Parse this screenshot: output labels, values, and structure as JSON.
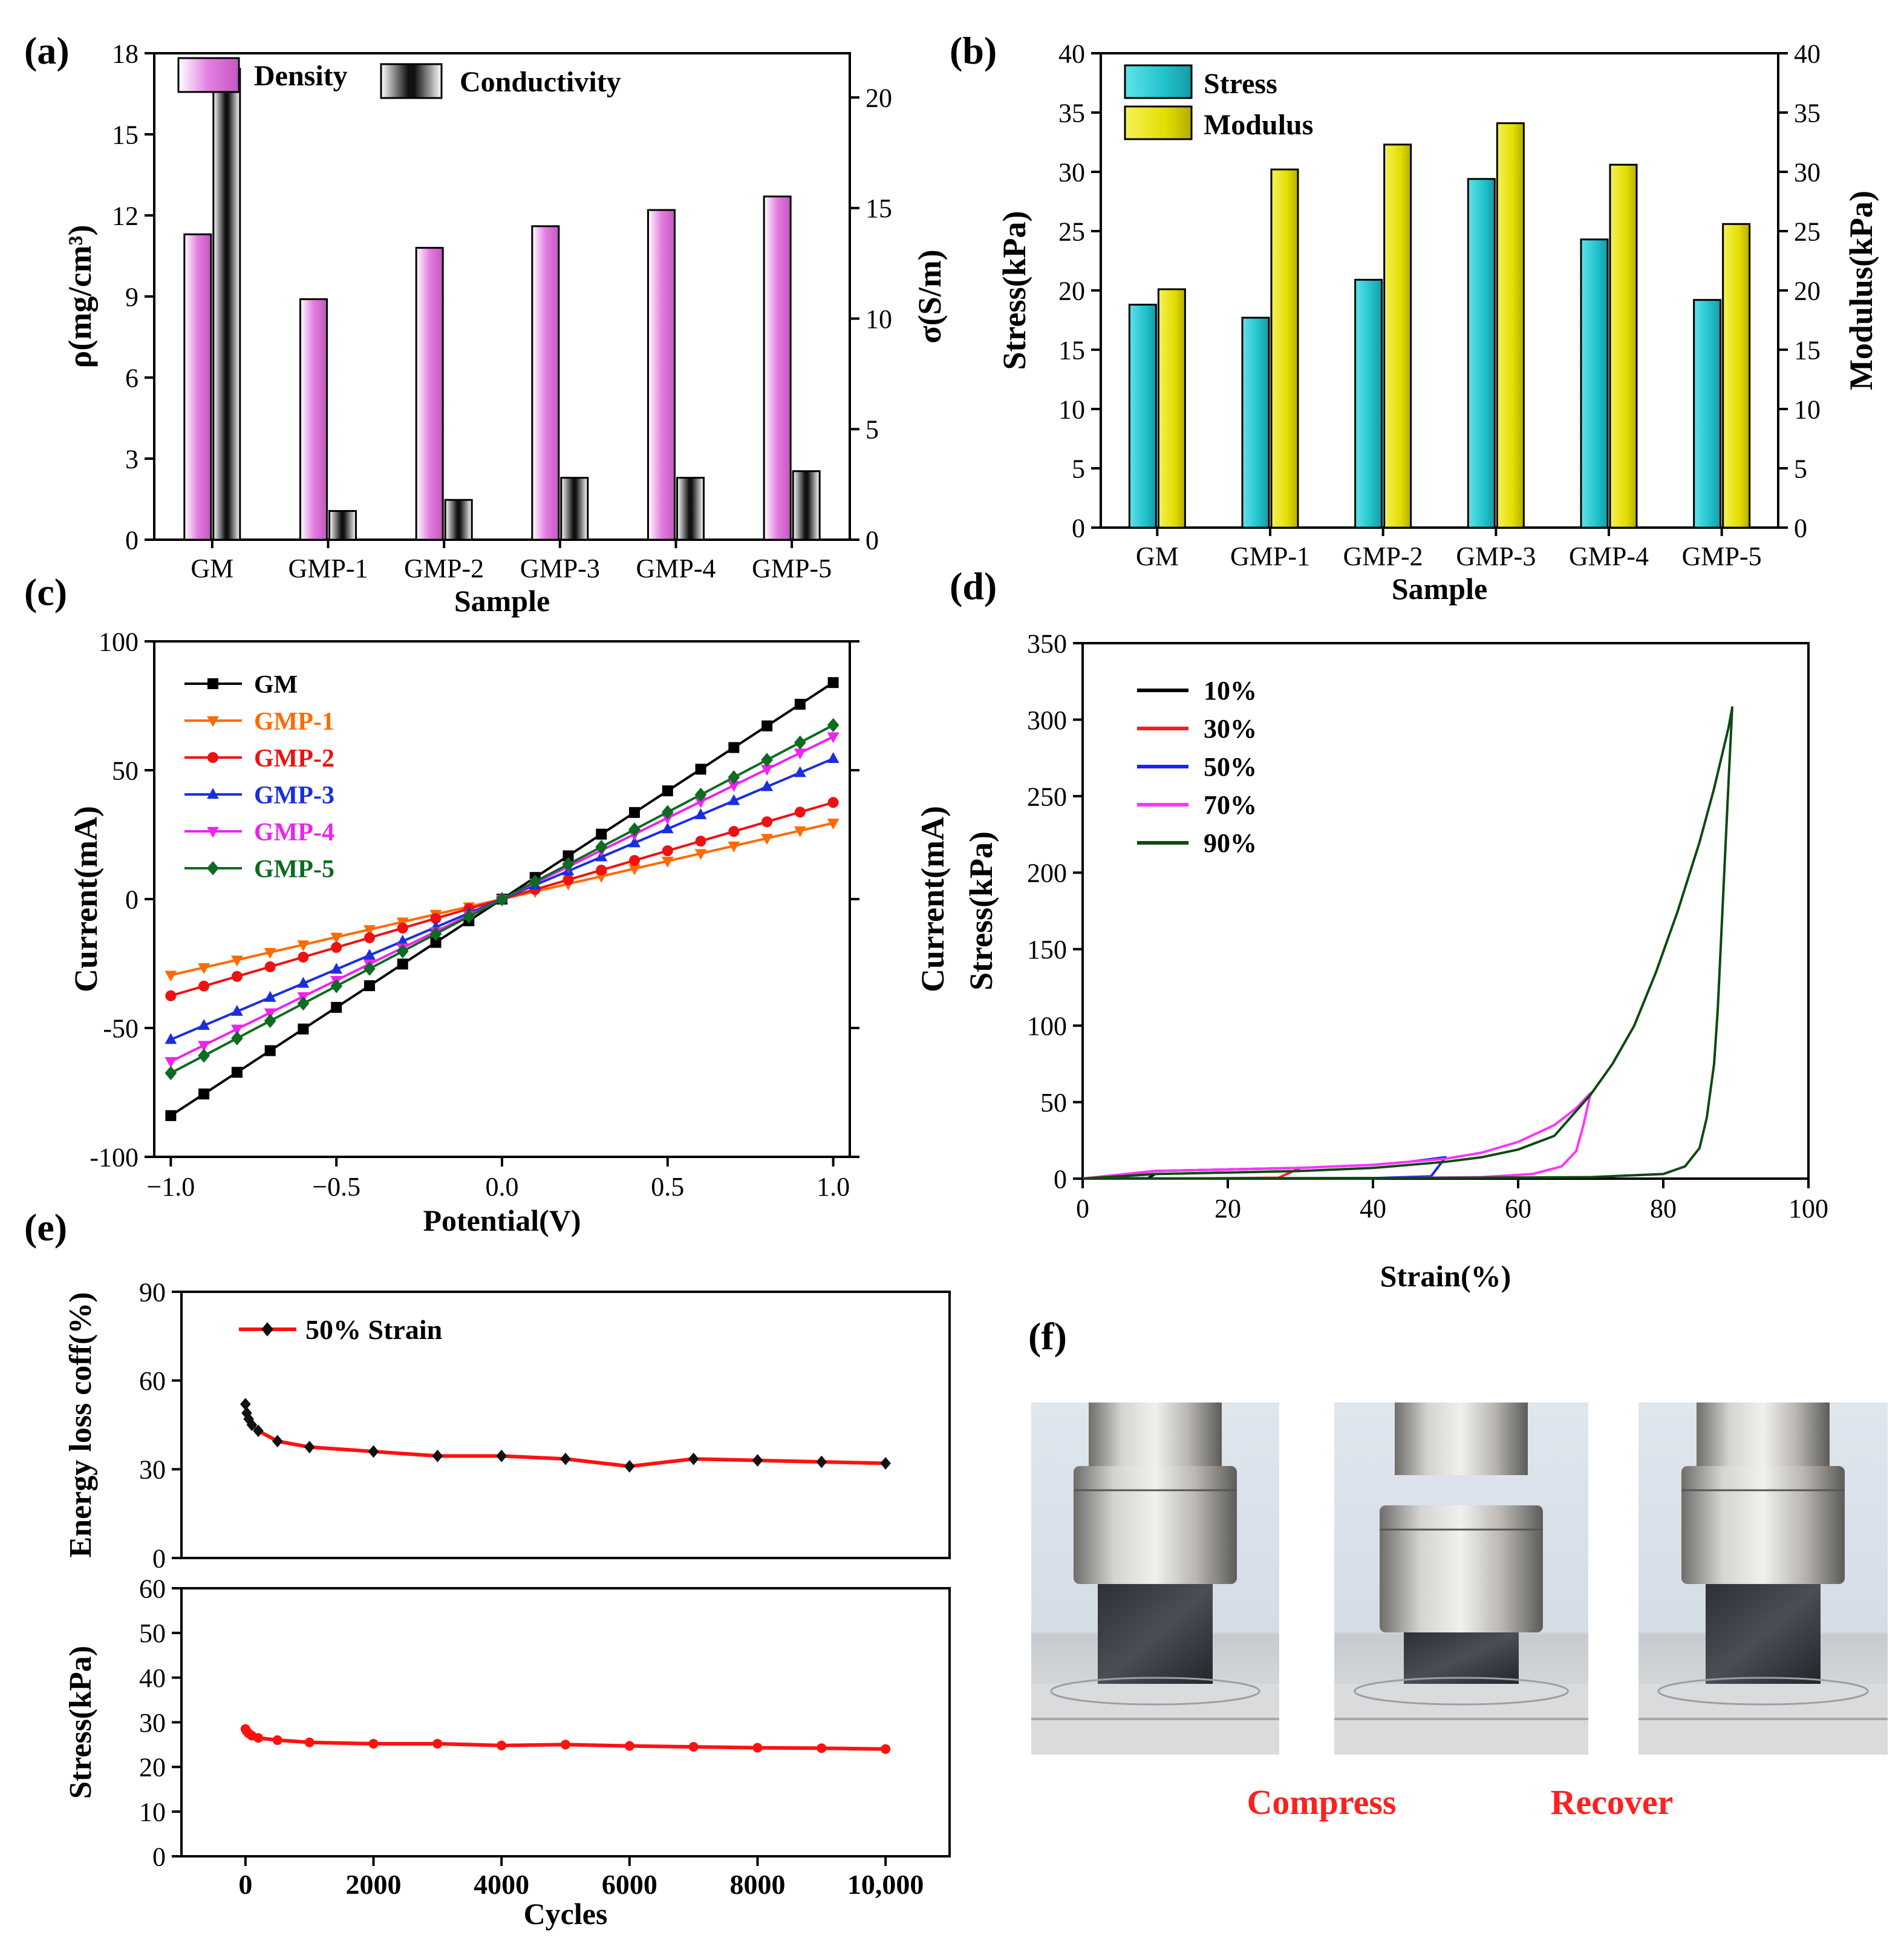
{
  "panel_labels": [
    "(a)",
    "(b)",
    "(c)",
    "(d)",
    "(e)",
    "(f)"
  ],
  "colors": {
    "density": "#d96ad6",
    "conductivity": "#9a9a9a",
    "stress": "#27c9d2",
    "modulus": "#e6e200",
    "GM": "#000000",
    "GMP-1": "#ff6a00",
    "GMP-2": "#ee1111",
    "GMP-3": "#1a2ee0",
    "GMP-4": "#ee22ee",
    "GMP-5": "#0d6b22",
    "c10": "#000000",
    "c30": "#ff1a1a",
    "c50": "#1a22ff",
    "c70": "#ff33ff",
    "c90": "#0d4a10",
    "line50": "#ff1111",
    "marker": "#111111",
    "photo_text": "#ff2020"
  },
  "chart_data": [
    {
      "id": "a",
      "type": "bar",
      "xlabel": "Sample",
      "ylabel": "ρ(mg/cm³)",
      "y2label": "σ(S/m)",
      "categories": [
        "GM",
        "GMP-1",
        "GMP-2",
        "GMP-3",
        "GMP-4",
        "GMP-5"
      ],
      "ylim": [
        0,
        18
      ],
      "yticks": [
        0,
        3,
        6,
        9,
        12,
        15,
        18
      ],
      "y2lim": [
        0,
        22
      ],
      "y2ticks": [
        0,
        5,
        10,
        15,
        20
      ],
      "series": [
        {
          "name": "Density",
          "axis": "left",
          "values": [
            11.3,
            8.9,
            10.8,
            11.6,
            12.2,
            12.7
          ]
        },
        {
          "name": "Conductivity",
          "axis": "right",
          "values": [
            21.3,
            1.3,
            1.8,
            2.8,
            2.8,
            3.1
          ]
        }
      ]
    },
    {
      "id": "b",
      "type": "bar",
      "xlabel": "Sample",
      "ylabel": "Stress(kPa)",
      "y2label": "Modulus(kPa)",
      "categories": [
        "GM",
        "GMP-1",
        "GMP-2",
        "GMP-3",
        "GMP-4",
        "GMP-5"
      ],
      "ylim": [
        0,
        40
      ],
      "yticks": [
        0,
        5,
        10,
        15,
        20,
        25,
        30,
        35,
        40
      ],
      "y2lim": [
        0,
        40
      ],
      "y2ticks": [
        0,
        5,
        10,
        15,
        20,
        25,
        30,
        35,
        40
      ],
      "series": [
        {
          "name": "Stress",
          "axis": "left",
          "values": [
            18.8,
            17.7,
            20.9,
            29.4,
            24.3,
            19.2
          ]
        },
        {
          "name": "Modulus",
          "axis": "right",
          "values": [
            20.1,
            30.2,
            32.3,
            34.1,
            30.6,
            25.6
          ]
        }
      ]
    },
    {
      "id": "c",
      "type": "line",
      "xlabel": "Potential(V)",
      "ylabel": "Current(mA)",
      "y2label": "Current(mA)",
      "xlim": [
        -1.05,
        1.05
      ],
      "xticks": [
        -1.0,
        -0.5,
        0.0,
        0.5,
        1.0
      ],
      "xticklabels": [
        "−1.0",
        "−0.5",
        "0.0",
        "0.5",
        "1.0"
      ],
      "ylim": [
        -100,
        100
      ],
      "yticks": [
        -100,
        -50,
        0,
        50,
        100
      ],
      "x": [
        -1.0,
        -0.9,
        -0.8,
        -0.7,
        -0.6,
        -0.5,
        -0.4,
        -0.3,
        -0.2,
        -0.1,
        0.0,
        0.1,
        0.2,
        0.3,
        0.4,
        0.5,
        0.6,
        0.7,
        0.8,
        0.9,
        1.0
      ],
      "series": [
        {
          "name": "GM",
          "slope": 84,
          "marker": "square"
        },
        {
          "name": "GMP-1",
          "slope": 29.5,
          "marker": "tri-down"
        },
        {
          "name": "GMP-2",
          "slope": 37.5,
          "marker": "circle"
        },
        {
          "name": "GMP-3",
          "slope": 54.5,
          "marker": "tri-up"
        },
        {
          "name": "GMP-4",
          "slope": 63,
          "marker": "tri-down"
        },
        {
          "name": "GMP-5",
          "slope": 67.5,
          "marker": "diamond"
        }
      ]
    },
    {
      "id": "d",
      "type": "line",
      "xlabel": "Strain(%)",
      "ylabel": "Stress(kPa)",
      "xlim": [
        0,
        100
      ],
      "xticks": [
        0,
        20,
        40,
        60,
        80,
        100
      ],
      "ylim": [
        0,
        350
      ],
      "yticks": [
        0,
        50,
        100,
        150,
        200,
        250,
        300,
        350
      ],
      "series": [
        {
          "name": "10%",
          "load": [
            [
              0,
              0
            ],
            [
              5,
              1.5
            ],
            [
              10,
              3
            ]
          ],
          "unload": [
            [
              10,
              3
            ],
            [
              9,
              0.3
            ],
            [
              0,
              0
            ]
          ]
        },
        {
          "name": "30%",
          "load": [
            [
              0,
              0
            ],
            [
              5,
              2.5
            ],
            [
              10,
              5
            ],
            [
              20,
              6
            ],
            [
              30,
              7
            ]
          ],
          "unload": [
            [
              30,
              7
            ],
            [
              27,
              0.6
            ],
            [
              15,
              0.1
            ],
            [
              0,
              0
            ]
          ]
        },
        {
          "name": "50%",
          "load": [
            [
              0,
              0
            ],
            [
              10,
              5
            ],
            [
              20,
              6
            ],
            [
              30,
              7
            ],
            [
              40,
              9
            ],
            [
              45,
              11
            ],
            [
              50,
              14
            ]
          ],
          "unload": [
            [
              50,
              14
            ],
            [
              48,
              1.5
            ],
            [
              40,
              0.3
            ],
            [
              0,
              0
            ]
          ]
        },
        {
          "name": "70%",
          "load": [
            [
              0,
              0
            ],
            [
              10,
              5
            ],
            [
              20,
              6
            ],
            [
              30,
              7
            ],
            [
              40,
              9
            ],
            [
              50,
              13
            ],
            [
              55,
              17
            ],
            [
              60,
              24
            ],
            [
              65,
              35
            ],
            [
              68,
              46
            ],
            [
              70,
              56
            ]
          ],
          "unload": [
            [
              70,
              56
            ],
            [
              69,
              35
            ],
            [
              68,
              18
            ],
            [
              66,
              8
            ],
            [
              62,
              3
            ],
            [
              55,
              1
            ],
            [
              40,
              0.3
            ],
            [
              0,
              0
            ]
          ]
        },
        {
          "name": "90%",
          "load": [
            [
              0,
              0
            ],
            [
              10,
              3
            ],
            [
              20,
              4
            ],
            [
              30,
              5
            ],
            [
              40,
              7
            ],
            [
              50,
              11
            ],
            [
              55,
              14
            ],
            [
              60,
              19
            ],
            [
              65,
              28
            ],
            [
              70,
              55
            ],
            [
              73,
              75
            ],
            [
              76,
              100
            ],
            [
              79,
              135
            ],
            [
              82,
              175
            ],
            [
              85,
              220
            ],
            [
              87,
              255
            ],
            [
              88,
              275
            ],
            [
              89,
              295
            ],
            [
              89.5,
              308
            ]
          ],
          "unload": [
            [
              89.5,
              308
            ],
            [
              89,
              260
            ],
            [
              88.5,
              210
            ],
            [
              88,
              160
            ],
            [
              87.5,
              110
            ],
            [
              87,
              75
            ],
            [
              86,
              40
            ],
            [
              85,
              20
            ],
            [
              83,
              8
            ],
            [
              80,
              3
            ],
            [
              70,
              1
            ],
            [
              50,
              0.5
            ],
            [
              0,
              0
            ]
          ]
        }
      ]
    },
    {
      "id": "e-top",
      "type": "line",
      "ylabel": "Energy loss coff(%)",
      "legend": "50% Strain",
      "xlim": [
        -1000,
        11000
      ],
      "ylim": [
        0,
        90
      ],
      "yticks": [
        0,
        30,
        60,
        90
      ],
      "x": [
        0,
        20,
        50,
        100,
        200,
        500,
        1000,
        2000,
        3000,
        4000,
        5000,
        6000,
        7000,
        8000,
        9000,
        10000
      ],
      "y": [
        52,
        49,
        47,
        45,
        43,
        39.5,
        37.5,
        36,
        34.5,
        34.5,
        33.5,
        31,
        33.5,
        33,
        32.5,
        32
      ]
    },
    {
      "id": "e-bottom",
      "type": "line",
      "xlabel": "Cycles",
      "ylabel": "Stress(kPa)",
      "xlim": [
        -1000,
        11000
      ],
      "xticks": [
        0,
        2000,
        4000,
        6000,
        8000,
        10000
      ],
      "xticklabels": [
        "0",
        "2000",
        "4000",
        "6000",
        "8000",
        "10,000"
      ],
      "ylim": [
        0,
        60
      ],
      "yticks": [
        0,
        10,
        20,
        30,
        40,
        50,
        60
      ],
      "x": [
        0,
        20,
        50,
        100,
        200,
        500,
        1000,
        2000,
        3000,
        4000,
        5000,
        6000,
        7000,
        8000,
        9000,
        10000
      ],
      "y": [
        28.5,
        28,
        27.5,
        27,
        26.5,
        26,
        25.5,
        25.2,
        25.2,
        24.8,
        25,
        24.7,
        24.5,
        24.3,
        24.2,
        24
      ]
    }
  ],
  "photos": {
    "labels": [
      "Compress",
      "Recover"
    ]
  }
}
